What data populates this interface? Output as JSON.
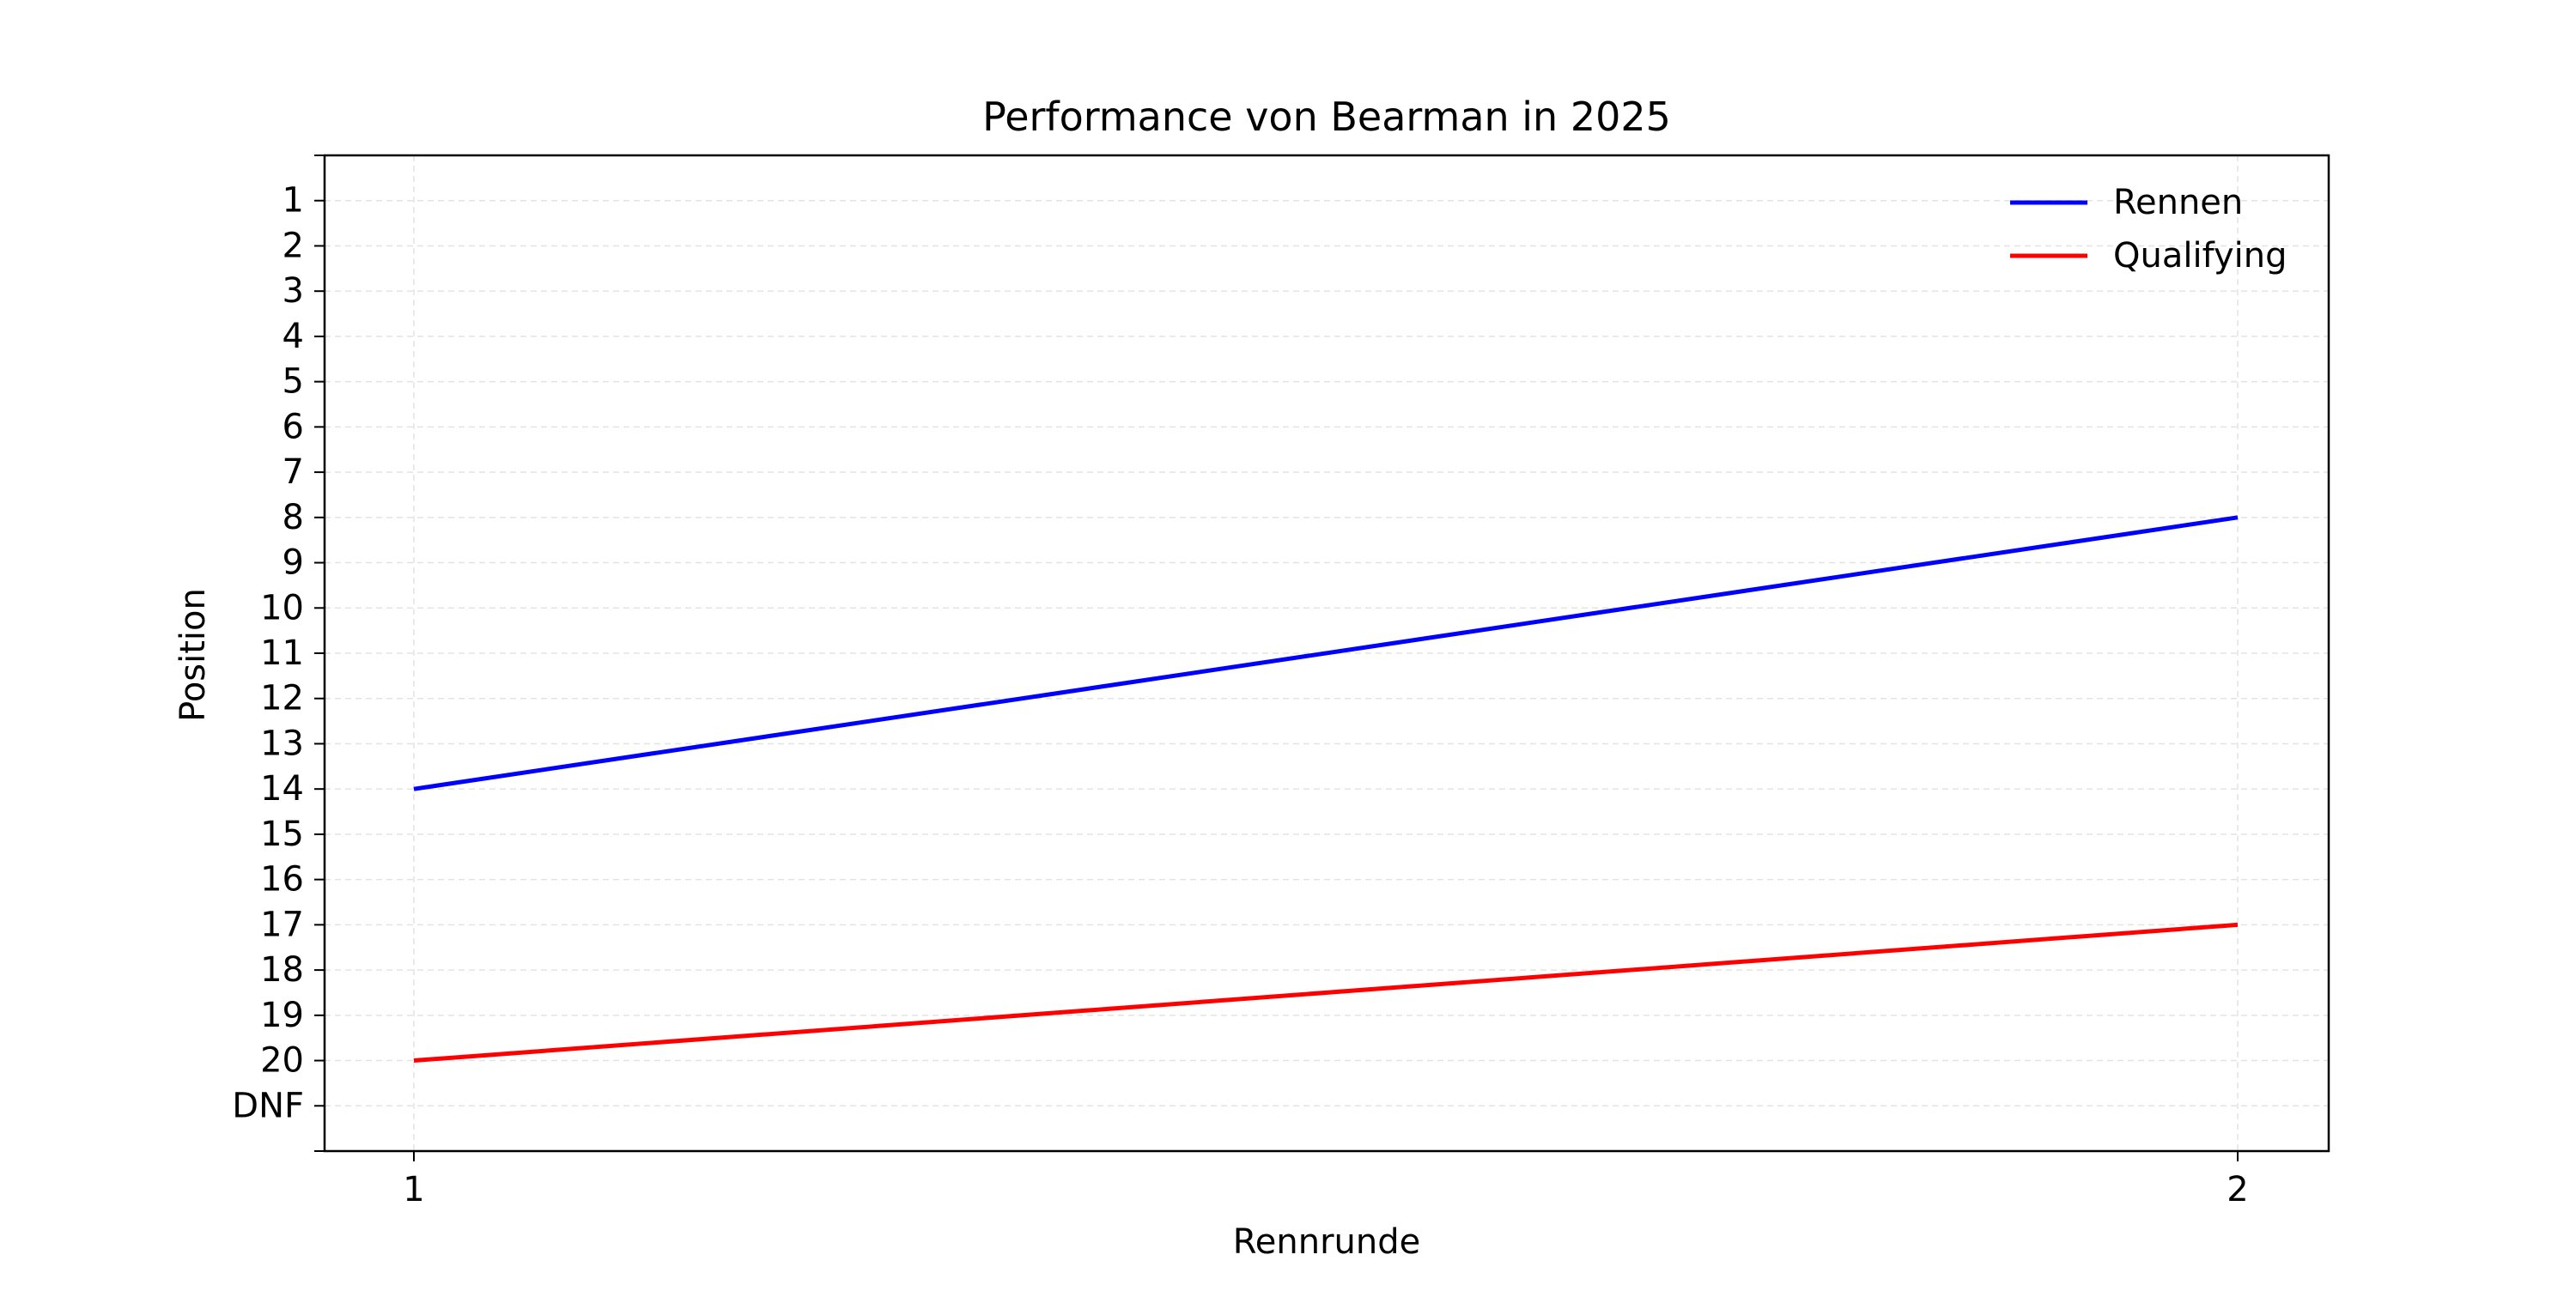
{
  "chart_data": {
    "type": "line",
    "title": "Performance von Bearman in 2025",
    "xlabel": "Rennrunde",
    "ylabel": "Position",
    "x": [
      1,
      2
    ],
    "x_tick_labels": [
      "1",
      "2"
    ],
    "y_tick_labels": [
      "1",
      "2",
      "3",
      "4",
      "5",
      "6",
      "7",
      "8",
      "9",
      "10",
      "11",
      "12",
      "13",
      "14",
      "15",
      "16",
      "17",
      "18",
      "19",
      "20",
      "DNF"
    ],
    "ylim": [
      22,
      0
    ],
    "y_inverted": true,
    "grid": true,
    "legend_position": "top-right",
    "series": [
      {
        "name": "Rennen",
        "color": "#0000ff",
        "values": [
          14,
          8
        ]
      },
      {
        "name": "Qualifying",
        "color": "#ff0000",
        "values": [
          20,
          17
        ]
      }
    ]
  }
}
